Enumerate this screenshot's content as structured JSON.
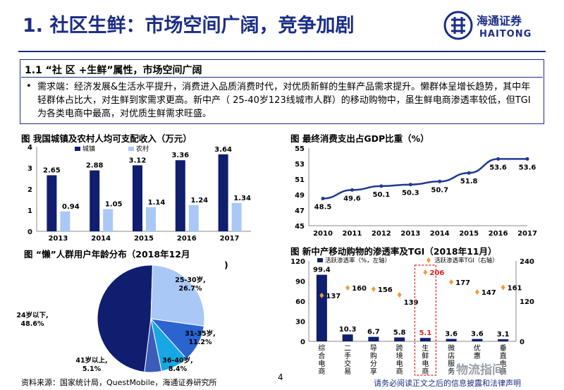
{
  "slide": {
    "title": "1. 社区生鲜：市场空间广阔，竞争加剧",
    "logo_text": "HAITONG",
    "logo_cn": "海通证券",
    "summary_heading": "1.1 “社 区 +生鲜”属性，市场空间广阔",
    "summary_bullet": "•",
    "summary_text": "需求端：经济发展&生活水平提升，消费进入品质消费时代，对优质新鲜的生鲜产品需求提升。懒群体呈增长趋势，其中年轻群体占比大，对生鲜到家需求更高。新中产（ 25-40岁123线城市人群）的移动购物中，虽生鲜电商渗透率较低，但TGI为各类电商中最高，对优质生鲜需求旺盛。",
    "page_number": "4",
    "source": "资料来源：国家统计局，QuestMobile，海通证券研究所",
    "disclaimer": "请务必阅读正文之后的信息披露和法律声明",
    "watermark": "物流指间"
  },
  "colors": {
    "brand": "#1b2d86",
    "dark_bar": "#0f1e6e",
    "light_bar": "#a9c8f5",
    "line": "#1f3a93",
    "tgi_marker": "#f39a3a",
    "highlight": "#e02020"
  },
  "chart_data": [
    {
      "type": "bar",
      "title": "图  我国城镇及农村人均可支配收入（万元）",
      "categories": [
        "2013",
        "2014",
        "2015",
        "2016",
        "2017"
      ],
      "series": [
        {
          "name": "城镇",
          "values": [
            2.65,
            2.88,
            3.12,
            3.36,
            3.64
          ]
        },
        {
          "name": "农村",
          "values": [
            0.94,
            1.05,
            1.14,
            1.24,
            1.34
          ]
        }
      ],
      "value_labels": {
        "城镇": [
          "2.65",
          "2.88",
          "3.12",
          "3.36",
          "3.64"
        ],
        "农村": [
          "0.94",
          "1.05",
          "1.14",
          "1.24",
          "1.34"
        ]
      },
      "ylim": [
        0,
        4
      ],
      "yticks": [
        "0",
        "1",
        "2",
        "3",
        "4"
      ],
      "legend": "top-left"
    },
    {
      "type": "line",
      "title": "图  最终消费支出占GDP比重（%）",
      "categories": [
        "2010",
        "2011",
        "2012",
        "2013",
        "2014",
        "2015",
        "2016",
        "2017"
      ],
      "values": [
        48.5,
        49.6,
        50.1,
        50.3,
        50.7,
        51.8,
        53.6,
        53.6
      ],
      "value_labels": [
        "48.5",
        "49.6",
        "50.1",
        "50.3",
        "50.7",
        "51.8",
        "53.6",
        "53.6"
      ],
      "ylim": [
        45,
        55
      ],
      "yticks": [
        "45",
        "47",
        "49",
        "51",
        "53",
        "55"
      ]
    },
    {
      "type": "pie",
      "title": "图  “懒”人群用户年龄分布（2018年12月",
      "title_tail": ")",
      "slices": [
        {
          "label": "24岁以下,",
          "value_label": "48.6%",
          "value": 48.6
        },
        {
          "label": "25-30岁,",
          "value_label": "26.7%",
          "value": 26.7
        },
        {
          "label": "31-35岁,",
          "value_label": "11.2%",
          "value": 11.2
        },
        {
          "label": "36-40岁,",
          "value_label": "8.4%",
          "value": 8.4
        },
        {
          "label": "41岁以上,",
          "value_label": "5.1%",
          "value": 5.1
        }
      ]
    },
    {
      "type": "bar",
      "title": "图  新中产移动购物的渗透率及TGI（2018年11月）",
      "categories": [
        "综合电商",
        "二手交易",
        "导购分享",
        "跨境电商",
        "生鲜电商",
        "微店服务",
        "优惠",
        "垂直电商"
      ],
      "series": [
        {
          "name": "活跃渗透率（%，左轴）",
          "values": [
            99.4,
            10.3,
            6.7,
            5.8,
            5.1,
            3.6,
            3.6,
            3.1
          ]
        },
        {
          "name": "活跃渗透率TGI（右轴）",
          "values": [
            137,
            160,
            156,
            139,
            206,
            177,
            147,
            161
          ]
        }
      ],
      "bar_labels": [
        "99.4",
        "10.3",
        "6.7",
        "5.8",
        "5.1",
        "3.6",
        "3.6",
        "3.1"
      ],
      "tgi_labels": [
        "137",
        "160",
        "156",
        "139",
        "206",
        "177",
        "147",
        "161"
      ],
      "y_left": {
        "lim": [
          0,
          120
        ],
        "ticks": [
          "0",
          "30",
          "60",
          "90",
          "120"
        ]
      },
      "y_right": {
        "lim": [
          0,
          240
        ],
        "ticks": [
          "0",
          "120",
          "240"
        ]
      },
      "highlight_category": "生鲜电商"
    }
  ]
}
